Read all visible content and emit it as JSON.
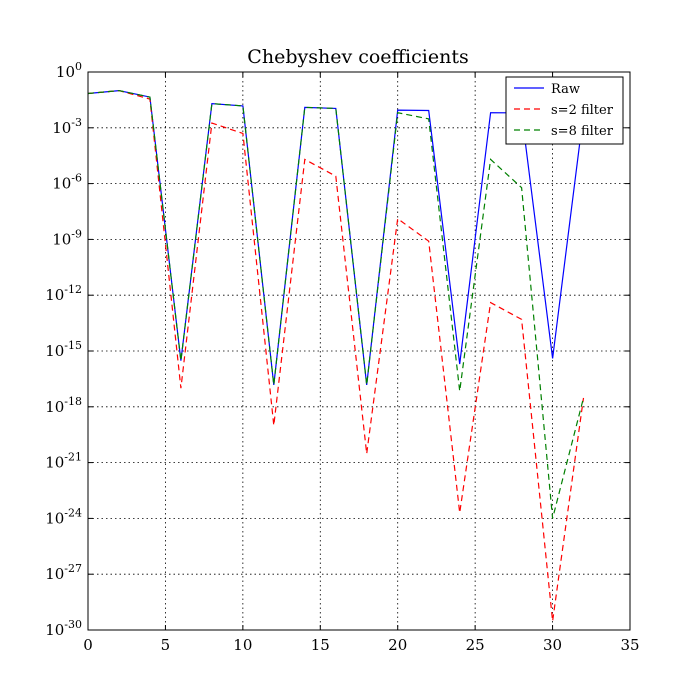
{
  "chart_data": {
    "type": "line",
    "title": "Chebyshev coefficients",
    "xlabel": "",
    "ylabel": "",
    "xlim": [
      0,
      35
    ],
    "ylim": [
      1e-30,
      1
    ],
    "yscale": "log",
    "grid": true,
    "legend_position": "top-right",
    "x_ticks": [
      0,
      5,
      10,
      15,
      20,
      25,
      30,
      35
    ],
    "y_tick_exponents": [
      0,
      -3,
      -6,
      -9,
      -12,
      -15,
      -18,
      -21,
      -24,
      -27,
      -30
    ],
    "series": [
      {
        "name": "Raw",
        "color": "#0000ff",
        "dash": "solid",
        "x": [
          0,
          2,
          4,
          6,
          8,
          10,
          12,
          14,
          16,
          18,
          20,
          22,
          24,
          26,
          28,
          30,
          32
        ],
        "y": [
          0.07,
          0.1,
          0.045,
          3e-16,
          0.02,
          0.015,
          1.5e-17,
          0.0125,
          0.011,
          1.5e-17,
          0.009,
          0.0085,
          2e-16,
          0.0065,
          0.0063,
          4e-16,
          0.006
        ]
      },
      {
        "name": "s=2 filter",
        "color": "#ff0000",
        "dash": "dashed",
        "x": [
          0,
          2,
          4,
          6,
          8,
          10,
          12,
          14,
          16,
          18,
          20,
          22,
          24,
          26,
          28,
          30,
          32
        ],
        "y": [
          0.07,
          0.1,
          0.035,
          1e-17,
          0.0018,
          0.0005,
          1e-19,
          2e-05,
          2.5e-06,
          3e-21,
          1.3e-08,
          8e-10,
          2e-24,
          4e-13,
          5e-14,
          3e-30,
          3e-18
        ]
      },
      {
        "name": "s=8 filter",
        "color": "#008000",
        "dash": "dashed",
        "x": [
          0,
          2,
          4,
          6,
          8,
          10,
          12,
          14,
          16,
          18,
          20,
          22,
          24,
          26,
          28,
          30,
          32
        ],
        "y": [
          0.07,
          0.1,
          0.045,
          3e-16,
          0.02,
          0.015,
          1.5e-17,
          0.0125,
          0.011,
          1.5e-17,
          0.0065,
          0.003,
          7e-18,
          2e-05,
          6e-07,
          1e-24,
          3e-18
        ]
      }
    ]
  }
}
